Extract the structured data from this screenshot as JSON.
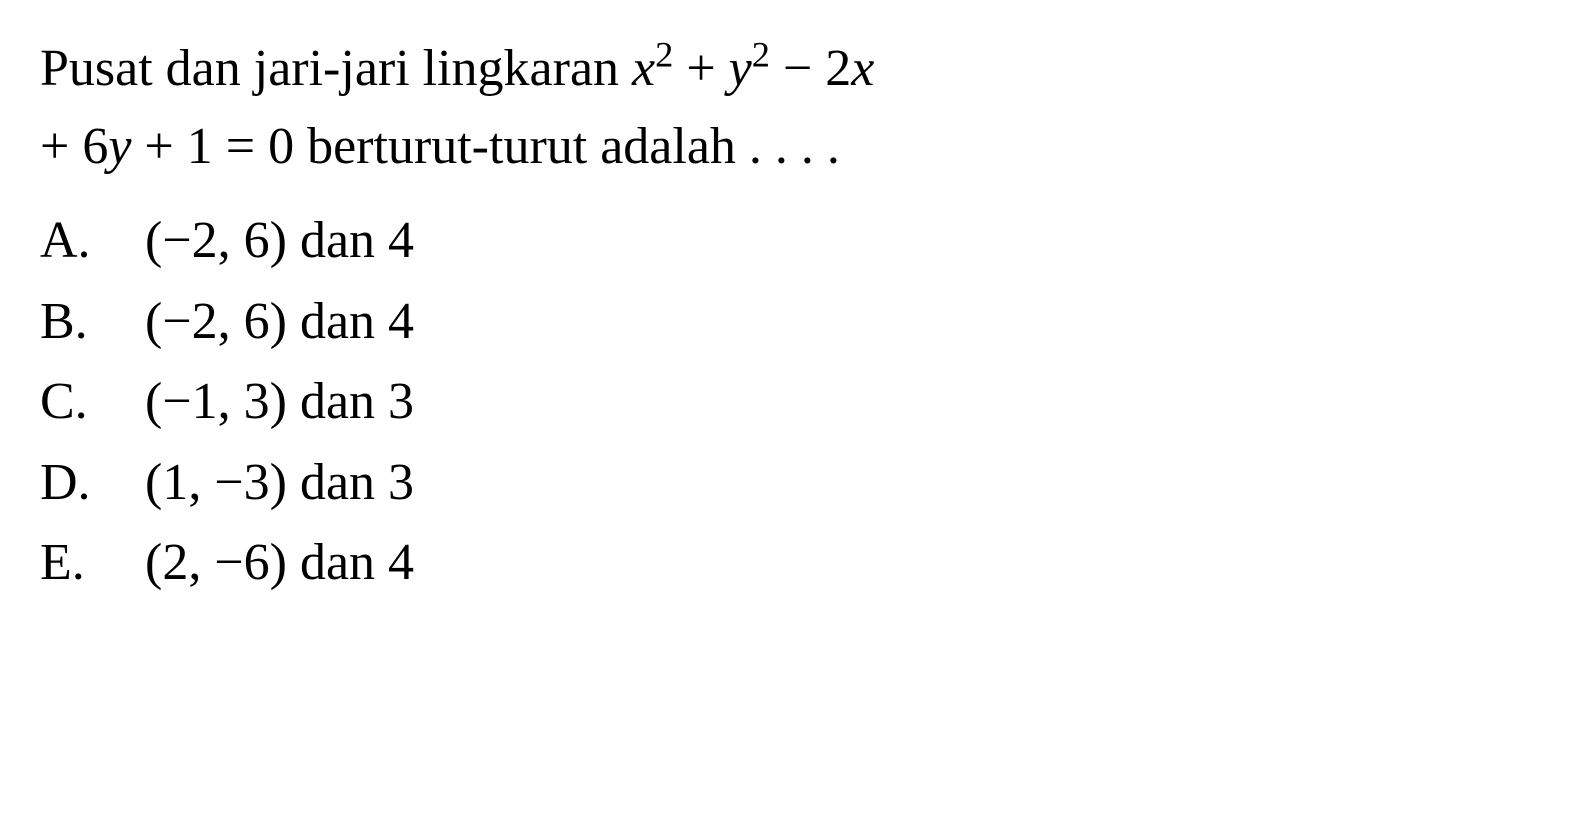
{
  "question": {
    "line1_part1": "Pusat dan jari-jari lingkaran ",
    "line1_formula_x2": "x",
    "line1_formula_plus": " + ",
    "line1_formula_y2": "y",
    "line1_formula_minus2x": " − 2",
    "line1_formula_x": "x",
    "line2_part1": "+ 6",
    "line2_y": "y",
    "line2_part2": " + 1 = 0 berturut-turut adalah . . . ."
  },
  "options": {
    "a": {
      "letter": "A.",
      "text": "(−2, 6) dan 4"
    },
    "b": {
      "letter": "B.",
      "text": "(−2, 6) dan 4"
    },
    "c": {
      "letter": "C.",
      "text": "(−1, 3) dan 3"
    },
    "d": {
      "letter": "D.",
      "text": "(1, −3) dan 3"
    },
    "e": {
      "letter": "E.",
      "text": "(2, −6) dan 4"
    }
  },
  "styling": {
    "background_color": "#ffffff",
    "text_color": "#000000",
    "font_family": "Times New Roman",
    "question_fontsize": 52,
    "option_fontsize": 52,
    "line_height": 1.5,
    "option_letter_width": 105
  }
}
